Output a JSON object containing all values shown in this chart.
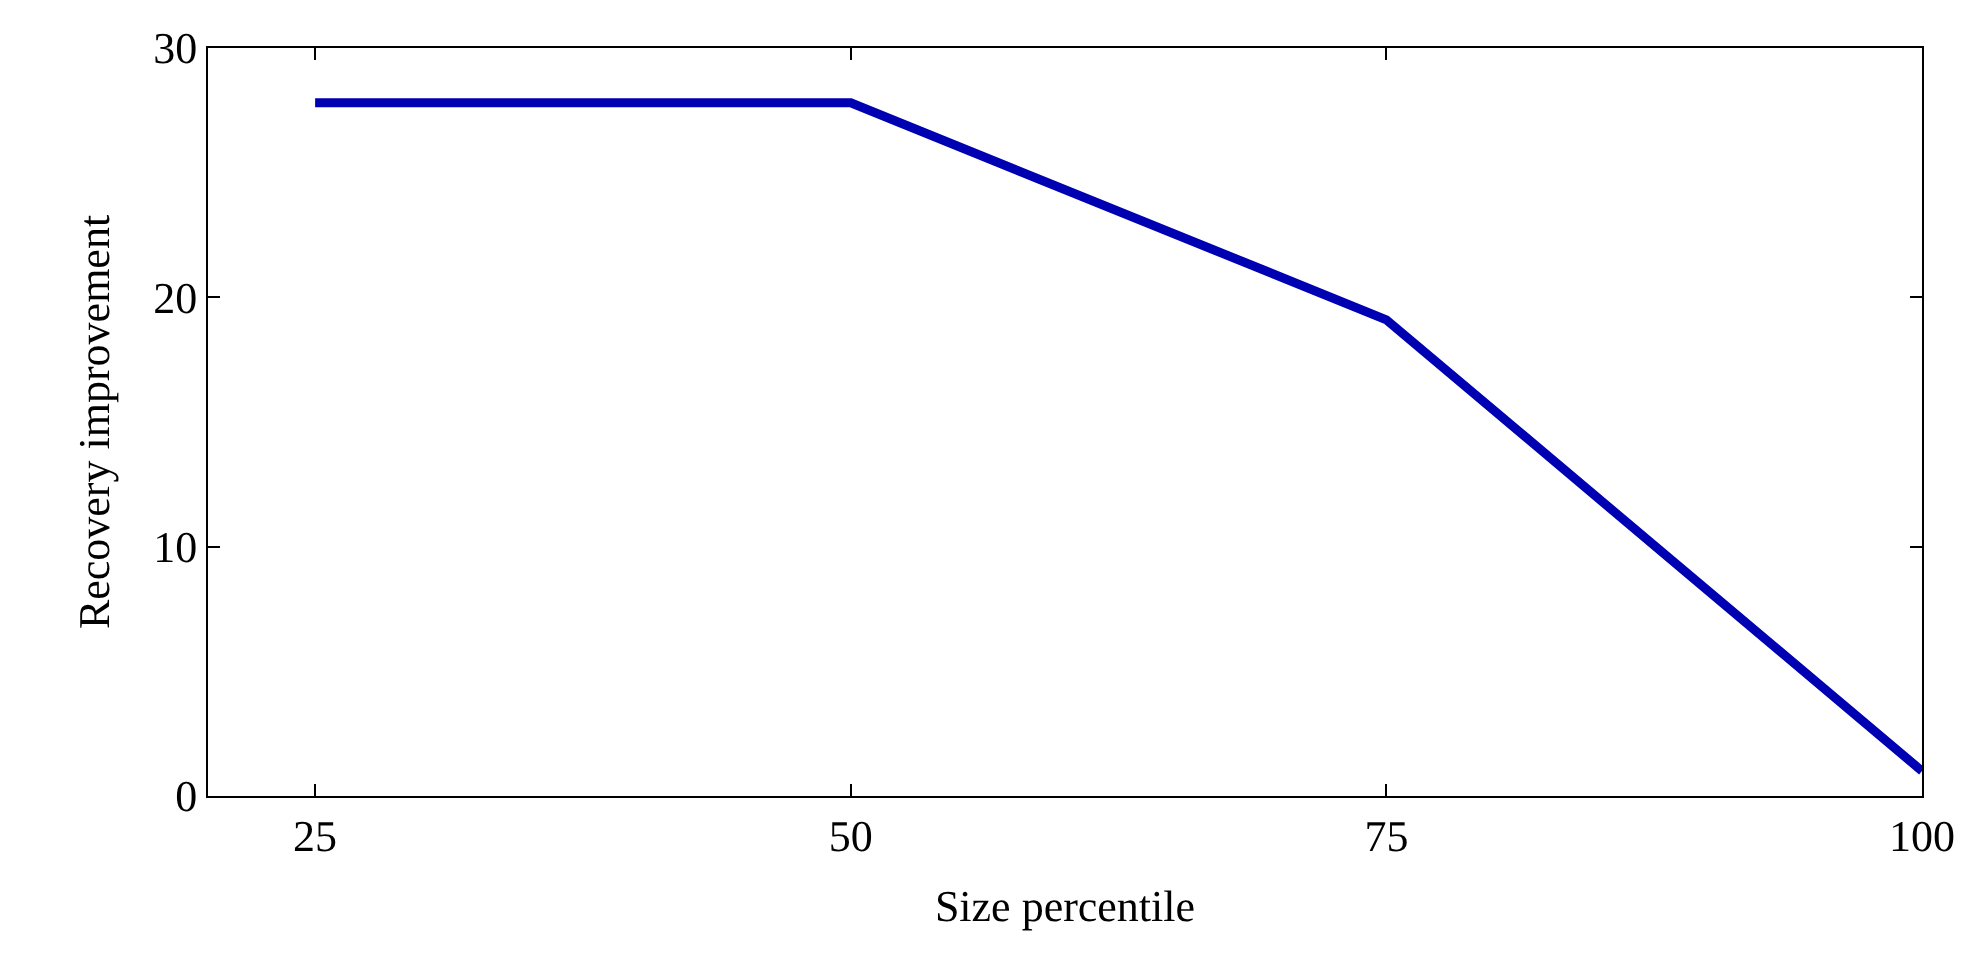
{
  "chart_data": {
    "type": "line",
    "xlabel": "Size percentile",
    "ylabel": "Recovery improvement",
    "x": [
      25,
      50,
      75,
      100
    ],
    "series": [
      {
        "color": "#0000b3",
        "values": [
          27.8,
          27.8,
          19.1,
          1
        ]
      }
    ],
    "xlim": [
      20,
      100
    ],
    "xticks": [
      25,
      50,
      75,
      100
    ],
    "ylim": [
      0,
      30
    ],
    "yticks": [
      0,
      10,
      20,
      30
    ],
    "grid": false,
    "marker": "none",
    "line_style": "solid"
  }
}
